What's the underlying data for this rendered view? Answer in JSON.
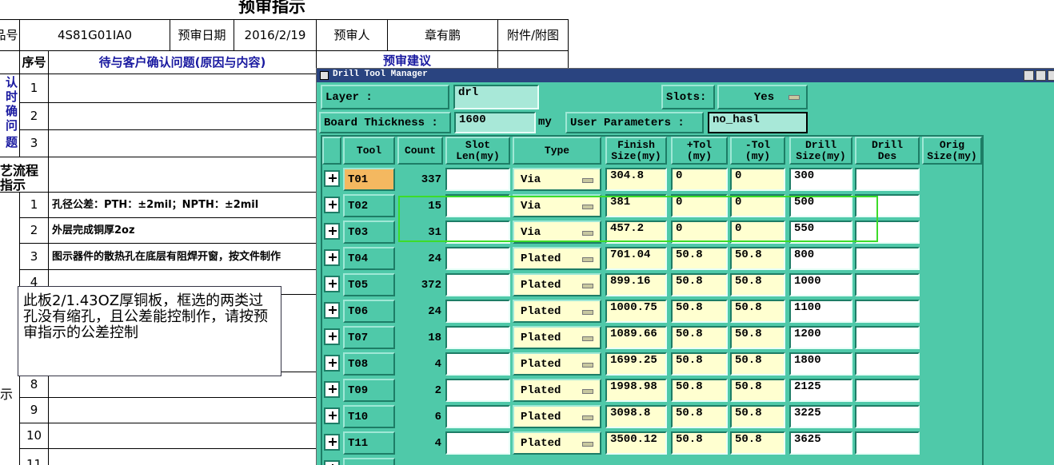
{
  "sheet": {
    "title": "预审指示",
    "header": [
      "品号",
      "4S81G01IA0",
      "预审日期",
      "2016/2/19",
      "预审人",
      "章有鹏",
      "附件/附图"
    ],
    "subheader": [
      "序号",
      "待与客户确认问题(原因与内容)",
      "预审建议"
    ],
    "section1": [
      "认",
      "时",
      "确",
      "问题"
    ],
    "seq1": [
      "1",
      "2",
      "3"
    ],
    "section2": [
      "艺流程",
      "指示"
    ],
    "seq2": [
      "1",
      "2",
      "3",
      "4"
    ],
    "notes": [
      "孔径公差：PTH：±2mil；NPTH：±2mil",
      "外层完成铜厚2oz",
      "图示器件的散热孔在底层有阻焊开窗，按文件制作"
    ],
    "seq3": [
      "8",
      "9",
      "10",
      "11"
    ],
    "section3": "示"
  },
  "comment": "此板2/1.43OZ厚铜板，框选的两类过孔没有缩孔，且公差能控制作，请按预审指示的公差控制",
  "window": {
    "title": "Drill Tool Manager",
    "layer_label": "Layer      :",
    "layer": "drl",
    "slots_label": "Slots:",
    "slots": "Yes",
    "thickness_label": "Board Thickness :",
    "thickness": "1600",
    "thickness_unit": "my",
    "user_params_label": "User Parameters :",
    "user_params": "no_hasl",
    "columns": [
      "Tool",
      "Count",
      "Slot\nLen(my)",
      "Type",
      "Finish\nSize(my)",
      "+Tol\n(my)",
      "-Tol\n(my)",
      "Drill\nSize(my)",
      "Drill\nDes",
      "Orig\nSize(my)"
    ],
    "rows": [
      [
        "T01",
        "337",
        "Via",
        "304.8",
        "0",
        "0",
        "300"
      ],
      [
        "T02",
        "15",
        "Via",
        "381",
        "0",
        "0",
        "500"
      ],
      [
        "T03",
        "31",
        "Via",
        "457.2",
        "0",
        "0",
        "550"
      ],
      [
        "T04",
        "24",
        "Plated",
        "701.04",
        "50.8",
        "50.8",
        "800"
      ],
      [
        "T05",
        "372",
        "Plated",
        "899.16",
        "50.8",
        "50.8",
        "1000"
      ],
      [
        "T06",
        "24",
        "Plated",
        "1000.75",
        "50.8",
        "50.8",
        "1100"
      ],
      [
        "T07",
        "18",
        "Plated",
        "1089.66",
        "50.8",
        "50.8",
        "1200"
      ],
      [
        "T08",
        "4",
        "Plated",
        "1699.25",
        "50.8",
        "50.8",
        "1800"
      ],
      [
        "T09",
        "2",
        "Plated",
        "1998.98",
        "50.8",
        "50.8",
        "2125"
      ],
      [
        "T10",
        "6",
        "Plated",
        "3098.8",
        "50.8",
        "50.8",
        "3225"
      ],
      [
        "T11",
        "4",
        "Plated",
        "3500.12",
        "50.8",
        "50.8",
        "3625"
      ]
    ]
  }
}
